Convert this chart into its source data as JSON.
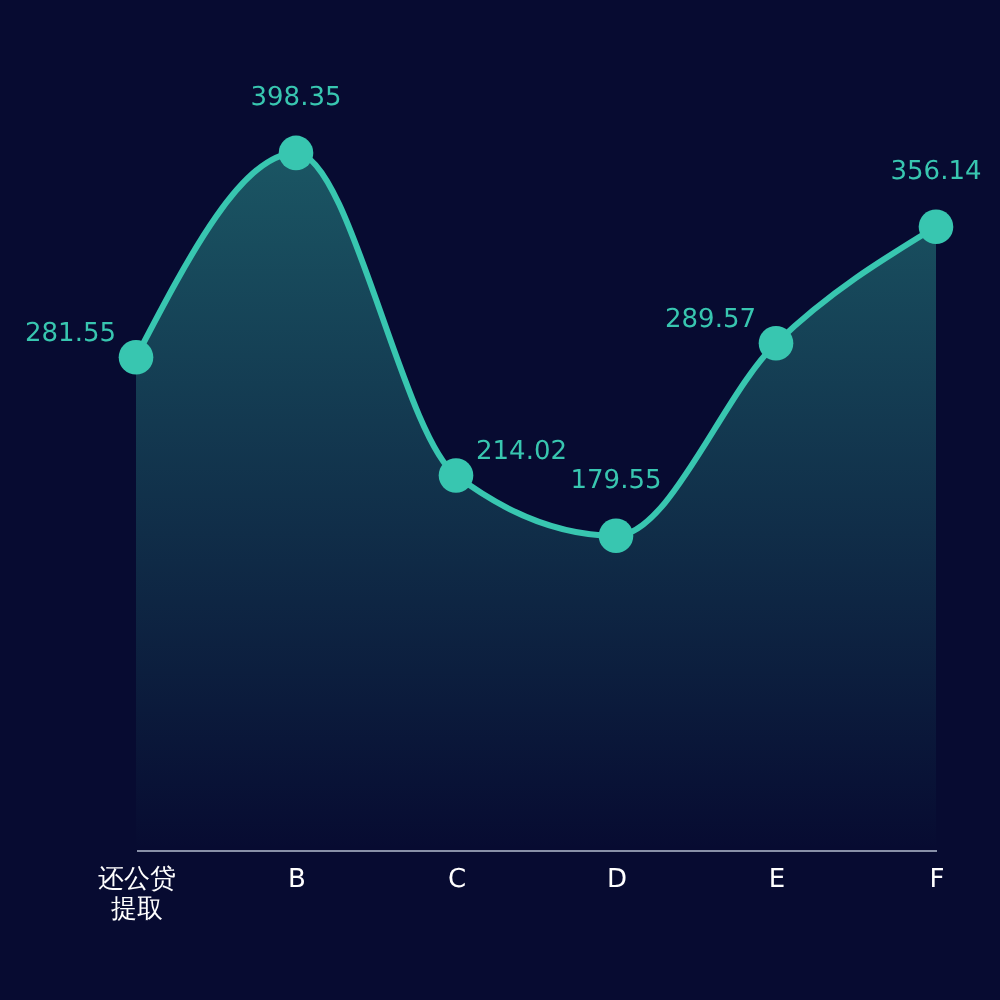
{
  "chart_data": {
    "type": "area",
    "categories": [
      "还公贷提取",
      "B",
      "C",
      "D",
      "E",
      "F"
    ],
    "values": [
      281.55,
      398.35,
      214.02,
      179.55,
      289.57,
      356.14
    ],
    "color": "#38c6b0",
    "marker": "circle",
    "data_labels": true
  }
}
